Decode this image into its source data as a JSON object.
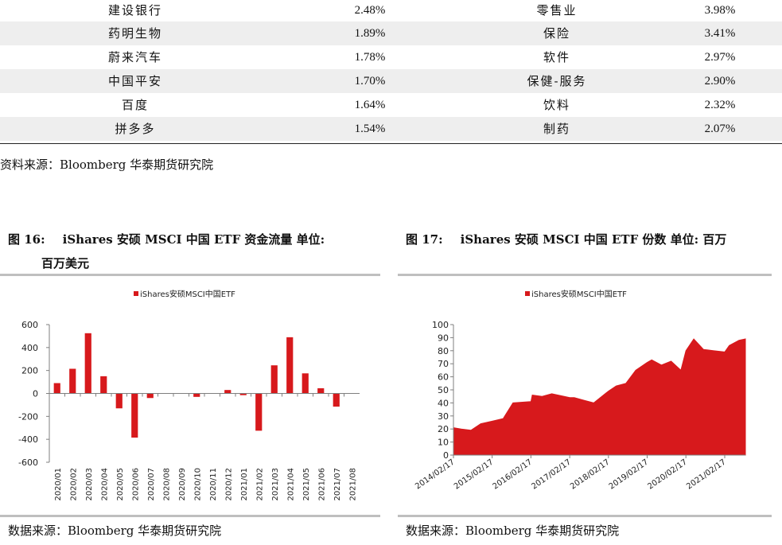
{
  "table": {
    "rows": [
      {
        "stock": "建设银行",
        "weight": "2.48%",
        "industry": "零售业",
        "industry_weight": "3.98%"
      },
      {
        "stock": "药明生物",
        "weight": "1.89%",
        "industry": "保险",
        "industry_weight": "3.41%"
      },
      {
        "stock": "蔚来汽车",
        "weight": "1.78%",
        "industry": "软件",
        "industry_weight": "2.97%"
      },
      {
        "stock": "中国平安",
        "weight": "1.70%",
        "industry": "保健-服务",
        "industry_weight": "2.90%"
      },
      {
        "stock": "百度",
        "weight": "1.64%",
        "industry": "饮料",
        "industry_weight": "2.32%"
      },
      {
        "stock": "拼多多",
        "weight": "1.54%",
        "industry": "制药",
        "industry_weight": "2.07%"
      }
    ],
    "source": "资料来源：Bloomberg 华泰期货研究院"
  },
  "fig16": {
    "number": "图 16:",
    "title_line1": "iShares 安硕 MSCI 中国 ETF 资金流量 单位:",
    "title_line2": "百万美元",
    "source": "数据来源：Bloomberg 华泰期货研究院"
  },
  "fig17": {
    "number": "图 17:",
    "title": "iShares 安硕 MSCI 中国 ETF 份数 单位: 百万",
    "source": "数据来源：Bloomberg 华泰期货研究院"
  },
  "chart_data": [
    {
      "type": "bar",
      "legend": "iShares安硕MSCI中国ETF",
      "color": "#d7191c",
      "categories": [
        "2020/01",
        "2020/02",
        "2020/03",
        "2020/04",
        "2020/05",
        "2020/06",
        "2020/07",
        "2020/08",
        "2020/09",
        "2020/10",
        "2020/11",
        "2020/12",
        "2021/01",
        "2021/02",
        "2021/03",
        "2021/04",
        "2021/05",
        "2021/06",
        "2021/07",
        "2021/08"
      ],
      "values": [
        90,
        215,
        525,
        150,
        -130,
        -385,
        -40,
        0,
        0,
        -30,
        0,
        30,
        -15,
        -325,
        245,
        490,
        175,
        45,
        -115,
        0
      ],
      "ylim": [
        -600,
        600
      ],
      "yticks": [
        -600,
        -400,
        -200,
        0,
        200,
        400,
        600
      ],
      "grid": false,
      "legend_position": "top"
    },
    {
      "type": "area",
      "legend": "iShares安硕MSCI中国ETF",
      "color": "#d7191c",
      "x": [
        "2014/02/17",
        "2014/05/01",
        "2014/08/01",
        "2014/11/01",
        "2015/02/17",
        "2015/06/01",
        "2015/09/01",
        "2016/02/17",
        "2016/03/01",
        "2016/06/01",
        "2016/09/01",
        "2017/02/17",
        "2017/04/01",
        "2017/07/01",
        "2017/10/01",
        "2018/02/17",
        "2018/05/01",
        "2018/08/01",
        "2018/11/01",
        "2019/02/17",
        "2019/04/01",
        "2019/07/01",
        "2019/10/01",
        "2020/01/01",
        "2020/02/17",
        "2020/05/01",
        "2020/08/01",
        "2020/11/01",
        "2021/02/17",
        "2021/04/01",
        "2021/07/01",
        "2021/08/31"
      ],
      "values": [
        21,
        20,
        19,
        24,
        26,
        28,
        40,
        41,
        46,
        45,
        47,
        44,
        44,
        42,
        40,
        49,
        53,
        55,
        65,
        71,
        73,
        69,
        72,
        65,
        80,
        89,
        81,
        80,
        79,
        84,
        88,
        89
      ],
      "xticks": [
        "2014/02/17",
        "2015/02/17",
        "2016/02/17",
        "2017/02/17",
        "2018/02/17",
        "2019/02/17",
        "2020/02/17",
        "2021/02/17"
      ],
      "ylim": [
        0,
        100
      ],
      "yticks": [
        0,
        10,
        20,
        30,
        40,
        50,
        60,
        70,
        80,
        90,
        100
      ],
      "grid": false,
      "legend_position": "top"
    }
  ]
}
